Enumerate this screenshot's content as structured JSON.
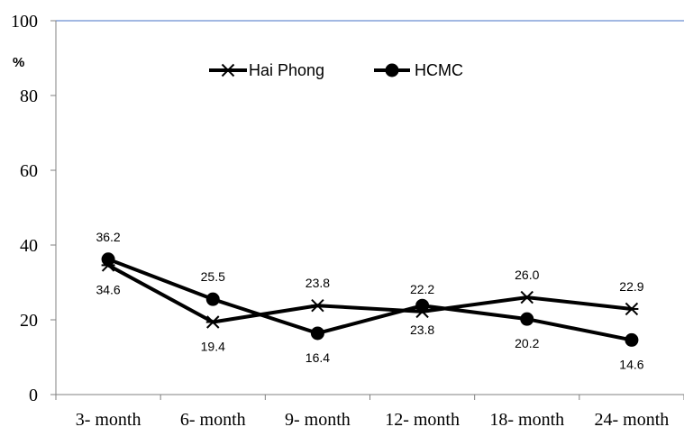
{
  "chart_data": {
    "type": "line",
    "title": "",
    "xlabel": "",
    "ylabel": "%",
    "ylim": [
      0,
      100
    ],
    "yticks": [
      0,
      20,
      40,
      60,
      80,
      100
    ],
    "grid": false,
    "legend_position": "top-left",
    "categories": [
      "3- month",
      "6- month",
      "9- month",
      "12- month",
      "18- month",
      "24- month"
    ],
    "series": [
      {
        "name": "Hai Phong",
        "marker": "asterisk",
        "values": [
          34.6,
          19.4,
          23.8,
          22.2,
          26.0,
          22.9
        ],
        "labels": [
          "34.6",
          "19.4",
          "23.8",
          "22.2",
          "26.0",
          "22.9"
        ],
        "label_positions": [
          "below",
          "below",
          "above",
          "above",
          "above",
          "above"
        ]
      },
      {
        "name": "HCMC",
        "marker": "circle",
        "values": [
          36.2,
          25.5,
          16.4,
          23.8,
          20.2,
          14.6
        ],
        "labels": [
          "36.2",
          "25.5",
          "16.4",
          "23.8",
          "20.2",
          "14.6"
        ],
        "label_positions": [
          "above",
          "above",
          "below",
          "below",
          "below",
          "below"
        ]
      }
    ],
    "colors": {
      "series": "#000000",
      "axis": "#808080",
      "top_line": "#4472C4"
    }
  }
}
